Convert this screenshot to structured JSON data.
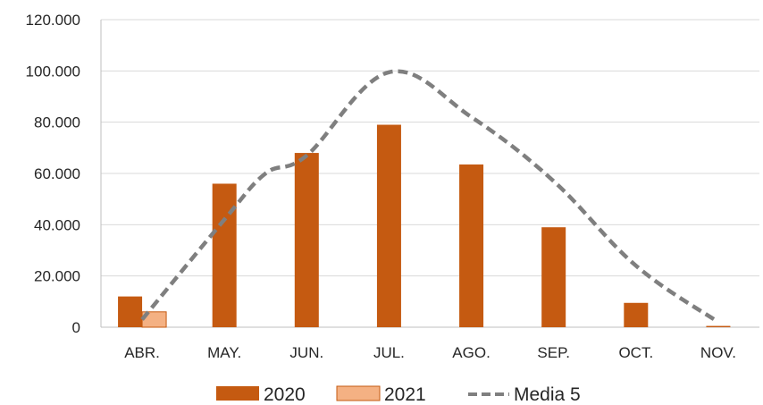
{
  "chart_data": {
    "type": "bar",
    "categories": [
      "ABR.",
      "MAY.",
      "JUN.",
      "JUL.",
      "AGO.",
      "SEP.",
      "OCT.",
      "NOV."
    ],
    "series": [
      {
        "name": "2020",
        "type": "bar",
        "color": "#C55A11",
        "values": [
          12000,
          56000,
          68000,
          79000,
          63500,
          39000,
          9500,
          500
        ]
      },
      {
        "name": "2021",
        "type": "bar",
        "color": "#F4B183",
        "values": [
          6000,
          null,
          null,
          null,
          null,
          null,
          null,
          null
        ]
      },
      {
        "name": "Media 5",
        "type": "line",
        "style": "dashed",
        "color": "#7F7F7F",
        "values": [
          3000,
          42000,
          67000,
          99500,
          82000,
          57000,
          24000,
          2000
        ],
        "extra_points": [
          {
            "between": [
              1,
              2
            ],
            "value": 60000
          }
        ]
      }
    ],
    "ylim": [
      0,
      120000
    ],
    "yticks": [
      0,
      20000,
      40000,
      60000,
      80000,
      100000,
      120000
    ],
    "ytick_labels": [
      "0",
      "20.000",
      "40.000",
      "60.000",
      "80.000",
      "100.000",
      "120.000"
    ],
    "grid": true,
    "legend_position": "bottom"
  }
}
